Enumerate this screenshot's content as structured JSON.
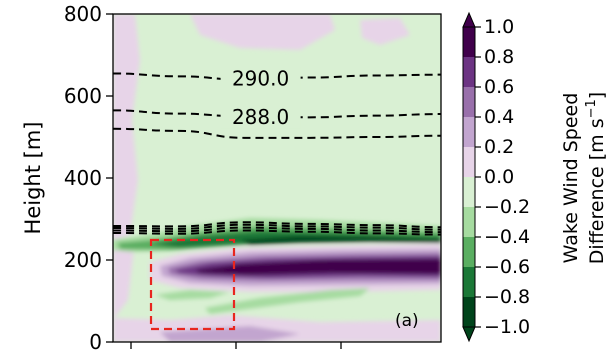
{
  "chart_data": {
    "type": "heatmap",
    "ylabel": "Height [m]",
    "ylim": [
      0,
      800
    ],
    "y_ticks": [
      "0",
      "200",
      "400",
      "600",
      "800"
    ],
    "panel_label": "(a)",
    "colorbar": {
      "label_line1": "Wake Wind Speed",
      "label_line2": "Difference [m s",
      "label_sup": "−1",
      "label_close": "]",
      "range": [
        -1.0,
        1.0
      ],
      "extend": "both",
      "ticks": [
        "1.0",
        "0.8",
        "0.6",
        "0.4",
        "0.2",
        "0.0",
        "−0.2",
        "−0.4",
        "−0.6",
        "−0.8",
        "−1.0"
      ],
      "levels": [
        {
          "from": 0.8,
          "to": 1.0,
          "color": "#40004b"
        },
        {
          "from": 0.6,
          "to": 0.8,
          "color": "#6c3483"
        },
        {
          "from": 0.4,
          "to": 0.6,
          "color": "#9970ab"
        },
        {
          "from": 0.2,
          "to": 0.4,
          "color": "#c2a5cf"
        },
        {
          "from": 0.0,
          "to": 0.2,
          "color": "#e7d4e8"
        },
        {
          "from": -0.2,
          "to": 0.0,
          "color": "#d9f0d3"
        },
        {
          "from": -0.4,
          "to": -0.2,
          "color": "#a6dba0"
        },
        {
          "from": -0.6,
          "to": -0.4,
          "color": "#5aae61"
        },
        {
          "from": -0.8,
          "to": -0.6,
          "color": "#1b7837"
        },
        {
          "from": -1.0,
          "to": -0.8,
          "color": "#00441b"
        }
      ]
    },
    "contours": [
      {
        "value": "290.0",
        "labeled": true,
        "y": [
          655,
          648,
          640,
          645,
          650,
          652
        ]
      },
      {
        "value": "288.0",
        "labeled": true,
        "y": [
          565,
          557,
          550,
          548,
          552,
          556
        ]
      },
      {
        "value": "",
        "labeled": false,
        "y": [
          520,
          515,
          498,
          498,
          500,
          503
        ]
      },
      {
        "value": "",
        "labeled": false,
        "y": [
          283,
          282,
          292,
          288,
          285,
          280
        ]
      },
      {
        "value": "",
        "labeled": false,
        "y": [
          278,
          276,
          286,
          282,
          279,
          274
        ]
      },
      {
        "value": "",
        "labeled": false,
        "y": [
          272,
          270,
          279,
          276,
          272,
          268
        ]
      },
      {
        "value": "",
        "labeled": false,
        "y": [
          266,
          264,
          272,
          269,
          265,
          262
        ]
      }
    ],
    "colors": {
      "dashed_box": "#e8261f",
      "contour": "#000000"
    }
  }
}
